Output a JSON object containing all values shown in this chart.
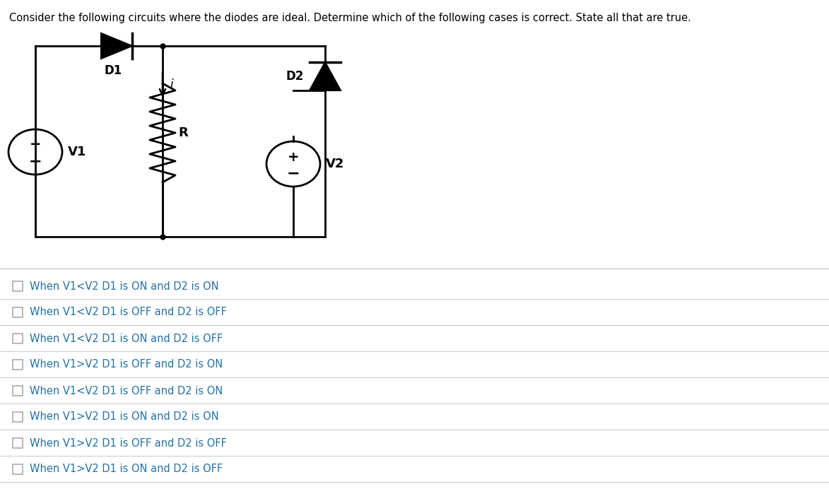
{
  "title": "Consider the following circuits where the diodes are ideal. Determine which of the following cases is correct. State all that are true.",
  "title_color": "#000000",
  "title_highlight": "following",
  "title_fontsize": 10.5,
  "options": [
    "When V1<V2 D1 is ON and D2 is ON",
    "When V1<V2 D1 is OFF and D2 is OFF",
    "When V1<V2 D1 is ON and D2 is OFF",
    "When V1>V2 D1 is OFF and D2 is ON",
    "When V1<V2 D1 is OFF and D2 is ON",
    "When V1>V2 D1 is ON and D2 is ON",
    "When V1>V2 D1 is OFF and D2 is OFF",
    "When V1>V2 D1 is ON and D2 is OFF"
  ],
  "option_color": "#2471a3",
  "bg_color": "#ffffff",
  "line_color": "#000000",
  "sep_color": "#cccccc"
}
